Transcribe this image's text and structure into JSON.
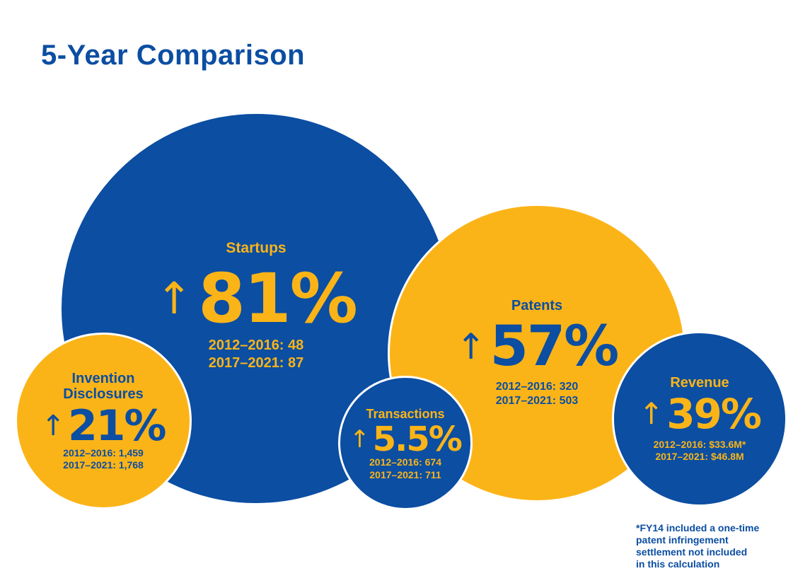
{
  "title": "5-Year Comparison",
  "colors": {
    "blue": "#0b4ea2",
    "gold": "#fbb418"
  },
  "metrics": {
    "startups": {
      "label": "Startups",
      "arrow": "up-arrow-icon",
      "percent": "81%",
      "period1": "2012–2016: 48",
      "period2": "2017–2021: 87",
      "color": "blue"
    },
    "patents": {
      "label": "Patents",
      "arrow": "up-arrow-icon",
      "percent": "57%",
      "period1": "2012–2016: 320",
      "period2": "2017–2021: 503",
      "color": "gold"
    },
    "invention": {
      "label_line1": "Invention",
      "label_line2": "Disclosures",
      "arrow": "up-arrow-icon",
      "percent": "21%",
      "period1": "2012–2016: 1,459",
      "period2": "2017–2021: 1,768",
      "color": "gold"
    },
    "transactions": {
      "label": "Transactions",
      "arrow": "up-arrow-icon",
      "percent": "5.5%",
      "period1": "2012–2016: 674",
      "period2": "2017–2021: 711",
      "color": "blue"
    },
    "revenue": {
      "label": "Revenue",
      "arrow": "up-arrow-icon",
      "percent": "39%",
      "period1": "2012–2016: $33.6M*",
      "period2": "2017–2021: $46.8M",
      "color": "blue"
    }
  },
  "footnote": {
    "line1": "*FY14 included a one-time",
    "line2": "patent infringement",
    "line3": "settlement not included",
    "line4": "in this calculation"
  }
}
